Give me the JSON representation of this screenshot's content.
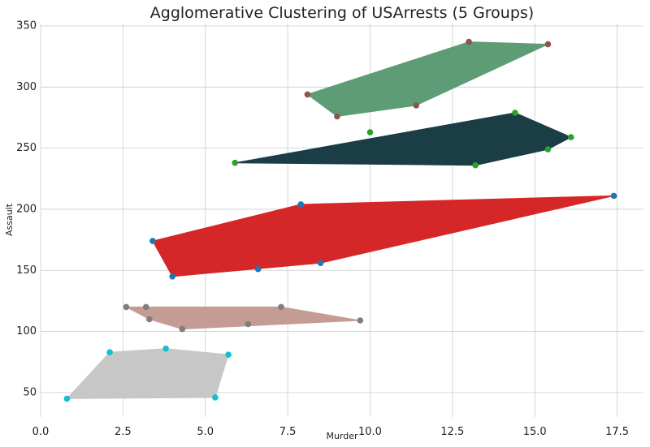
{
  "chart_data": {
    "type": "scatter",
    "title": "Agglomerative Clustering of USArrests (5 Groups)",
    "xlabel": "Murder",
    "ylabel": "Assault",
    "xlim": [
      0,
      18.3
    ],
    "ylim": [
      30,
      352
    ],
    "xticks": [
      0.0,
      2.5,
      5.0,
      7.5,
      10.0,
      12.5,
      15.0,
      17.5
    ],
    "xtick_labels": [
      "0.0",
      "2.5",
      "5.0",
      "7.5",
      "10.0",
      "12.5",
      "15.0",
      "17.5"
    ],
    "yticks": [
      50,
      100,
      150,
      200,
      250,
      300,
      350
    ],
    "ytick_labels": [
      "50",
      "100",
      "150",
      "200",
      "250",
      "300",
      "350"
    ],
    "grid": true,
    "series": [
      {
        "point_color": "#8c564b",
        "hull_color": "#5e9c76",
        "points": [
          [
            8.1,
            294
          ],
          [
            9.0,
            276
          ],
          [
            11.4,
            285
          ],
          [
            13.0,
            337
          ],
          [
            15.4,
            335
          ]
        ],
        "hull": [
          [
            8.1,
            294
          ],
          [
            13.0,
            337
          ],
          [
            15.4,
            335
          ],
          [
            11.4,
            285
          ],
          [
            9.0,
            276
          ]
        ]
      },
      {
        "point_color": "#2ca02c",
        "hull_color": "#1b3d45",
        "points": [
          [
            5.9,
            238
          ],
          [
            10.0,
            263
          ],
          [
            13.2,
            236
          ],
          [
            14.4,
            279
          ],
          [
            15.4,
            249
          ],
          [
            16.1,
            259
          ]
        ],
        "hull": [
          [
            5.9,
            238
          ],
          [
            14.4,
            279
          ],
          [
            16.1,
            259
          ],
          [
            15.4,
            249
          ],
          [
            13.2,
            236
          ]
        ]
      },
      {
        "point_color": "#1f77b4",
        "hull_color": "#d62728",
        "points": [
          [
            3.4,
            174
          ],
          [
            4.0,
            145
          ],
          [
            6.6,
            151
          ],
          [
            7.9,
            204
          ],
          [
            8.5,
            156
          ],
          [
            17.4,
            211
          ]
        ],
        "hull": [
          [
            3.4,
            174
          ],
          [
            7.9,
            204
          ],
          [
            17.4,
            211
          ],
          [
            8.5,
            156
          ],
          [
            4.0,
            145
          ]
        ]
      },
      {
        "point_color": "#7f7f7f",
        "hull_color": "#c49c94",
        "points": [
          [
            2.6,
            120
          ],
          [
            3.2,
            120
          ],
          [
            3.3,
            110
          ],
          [
            4.3,
            102
          ],
          [
            6.3,
            106
          ],
          [
            7.3,
            120
          ],
          [
            9.7,
            109
          ]
        ],
        "hull": [
          [
            2.6,
            120
          ],
          [
            7.3,
            120
          ],
          [
            9.7,
            109
          ],
          [
            4.3,
            102
          ],
          [
            3.3,
            110
          ]
        ]
      },
      {
        "point_color": "#17becf",
        "hull_color": "#c7c7c7",
        "points": [
          [
            0.8,
            45
          ],
          [
            2.1,
            83
          ],
          [
            3.8,
            86
          ],
          [
            5.3,
            46
          ],
          [
            5.7,
            81
          ]
        ],
        "hull": [
          [
            0.8,
            45
          ],
          [
            2.1,
            83
          ],
          [
            3.8,
            86
          ],
          [
            5.7,
            81
          ],
          [
            5.3,
            46
          ]
        ]
      }
    ]
  }
}
